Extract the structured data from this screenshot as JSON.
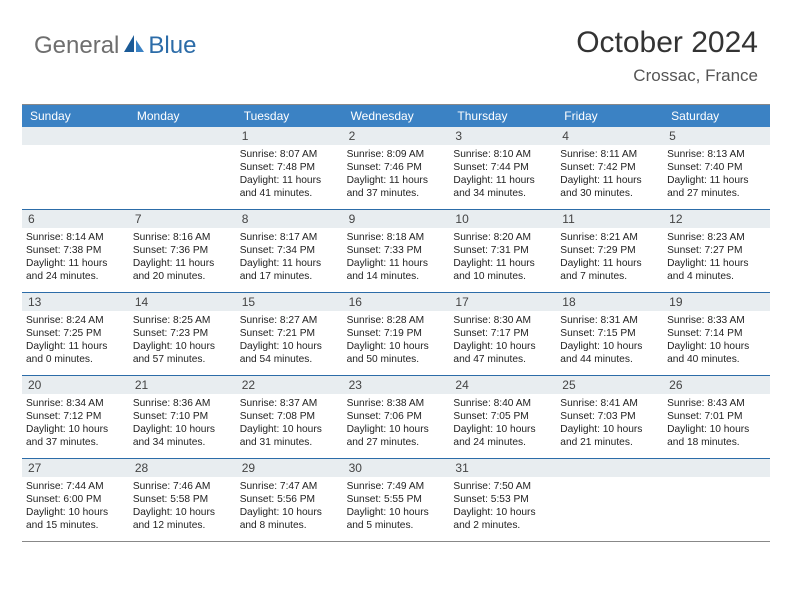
{
  "logo": {
    "part1": "General",
    "part2": "Blue"
  },
  "title": "October 2024",
  "location": "Crossac, France",
  "daynames": [
    "Sunday",
    "Monday",
    "Tuesday",
    "Wednesday",
    "Thursday",
    "Friday",
    "Saturday"
  ],
  "colors": {
    "header_bg": "#3b82c4",
    "border": "#2c6ca8",
    "daynum_bg": "#e8edf0",
    "logo_gray": "#6e6e6e",
    "logo_blue": "#2c6ca8"
  },
  "weeks": [
    [
      {
        "blank": true
      },
      {
        "blank": true
      },
      {
        "num": "1",
        "sunrise": "Sunrise: 8:07 AM",
        "sunset": "Sunset: 7:48 PM",
        "day1": "Daylight: 11 hours",
        "day2": "and 41 minutes."
      },
      {
        "num": "2",
        "sunrise": "Sunrise: 8:09 AM",
        "sunset": "Sunset: 7:46 PM",
        "day1": "Daylight: 11 hours",
        "day2": "and 37 minutes."
      },
      {
        "num": "3",
        "sunrise": "Sunrise: 8:10 AM",
        "sunset": "Sunset: 7:44 PM",
        "day1": "Daylight: 11 hours",
        "day2": "and 34 minutes."
      },
      {
        "num": "4",
        "sunrise": "Sunrise: 8:11 AM",
        "sunset": "Sunset: 7:42 PM",
        "day1": "Daylight: 11 hours",
        "day2": "and 30 minutes."
      },
      {
        "num": "5",
        "sunrise": "Sunrise: 8:13 AM",
        "sunset": "Sunset: 7:40 PM",
        "day1": "Daylight: 11 hours",
        "day2": "and 27 minutes."
      }
    ],
    [
      {
        "num": "6",
        "sunrise": "Sunrise: 8:14 AM",
        "sunset": "Sunset: 7:38 PM",
        "day1": "Daylight: 11 hours",
        "day2": "and 24 minutes."
      },
      {
        "num": "7",
        "sunrise": "Sunrise: 8:16 AM",
        "sunset": "Sunset: 7:36 PM",
        "day1": "Daylight: 11 hours",
        "day2": "and 20 minutes."
      },
      {
        "num": "8",
        "sunrise": "Sunrise: 8:17 AM",
        "sunset": "Sunset: 7:34 PM",
        "day1": "Daylight: 11 hours",
        "day2": "and 17 minutes."
      },
      {
        "num": "9",
        "sunrise": "Sunrise: 8:18 AM",
        "sunset": "Sunset: 7:33 PM",
        "day1": "Daylight: 11 hours",
        "day2": "and 14 minutes."
      },
      {
        "num": "10",
        "sunrise": "Sunrise: 8:20 AM",
        "sunset": "Sunset: 7:31 PM",
        "day1": "Daylight: 11 hours",
        "day2": "and 10 minutes."
      },
      {
        "num": "11",
        "sunrise": "Sunrise: 8:21 AM",
        "sunset": "Sunset: 7:29 PM",
        "day1": "Daylight: 11 hours",
        "day2": "and 7 minutes."
      },
      {
        "num": "12",
        "sunrise": "Sunrise: 8:23 AM",
        "sunset": "Sunset: 7:27 PM",
        "day1": "Daylight: 11 hours",
        "day2": "and 4 minutes."
      }
    ],
    [
      {
        "num": "13",
        "sunrise": "Sunrise: 8:24 AM",
        "sunset": "Sunset: 7:25 PM",
        "day1": "Daylight: 11 hours",
        "day2": "and 0 minutes."
      },
      {
        "num": "14",
        "sunrise": "Sunrise: 8:25 AM",
        "sunset": "Sunset: 7:23 PM",
        "day1": "Daylight: 10 hours",
        "day2": "and 57 minutes."
      },
      {
        "num": "15",
        "sunrise": "Sunrise: 8:27 AM",
        "sunset": "Sunset: 7:21 PM",
        "day1": "Daylight: 10 hours",
        "day2": "and 54 minutes."
      },
      {
        "num": "16",
        "sunrise": "Sunrise: 8:28 AM",
        "sunset": "Sunset: 7:19 PM",
        "day1": "Daylight: 10 hours",
        "day2": "and 50 minutes."
      },
      {
        "num": "17",
        "sunrise": "Sunrise: 8:30 AM",
        "sunset": "Sunset: 7:17 PM",
        "day1": "Daylight: 10 hours",
        "day2": "and 47 minutes."
      },
      {
        "num": "18",
        "sunrise": "Sunrise: 8:31 AM",
        "sunset": "Sunset: 7:15 PM",
        "day1": "Daylight: 10 hours",
        "day2": "and 44 minutes."
      },
      {
        "num": "19",
        "sunrise": "Sunrise: 8:33 AM",
        "sunset": "Sunset: 7:14 PM",
        "day1": "Daylight: 10 hours",
        "day2": "and 40 minutes."
      }
    ],
    [
      {
        "num": "20",
        "sunrise": "Sunrise: 8:34 AM",
        "sunset": "Sunset: 7:12 PM",
        "day1": "Daylight: 10 hours",
        "day2": "and 37 minutes."
      },
      {
        "num": "21",
        "sunrise": "Sunrise: 8:36 AM",
        "sunset": "Sunset: 7:10 PM",
        "day1": "Daylight: 10 hours",
        "day2": "and 34 minutes."
      },
      {
        "num": "22",
        "sunrise": "Sunrise: 8:37 AM",
        "sunset": "Sunset: 7:08 PM",
        "day1": "Daylight: 10 hours",
        "day2": "and 31 minutes."
      },
      {
        "num": "23",
        "sunrise": "Sunrise: 8:38 AM",
        "sunset": "Sunset: 7:06 PM",
        "day1": "Daylight: 10 hours",
        "day2": "and 27 minutes."
      },
      {
        "num": "24",
        "sunrise": "Sunrise: 8:40 AM",
        "sunset": "Sunset: 7:05 PM",
        "day1": "Daylight: 10 hours",
        "day2": "and 24 minutes."
      },
      {
        "num": "25",
        "sunrise": "Sunrise: 8:41 AM",
        "sunset": "Sunset: 7:03 PM",
        "day1": "Daylight: 10 hours",
        "day2": "and 21 minutes."
      },
      {
        "num": "26",
        "sunrise": "Sunrise: 8:43 AM",
        "sunset": "Sunset: 7:01 PM",
        "day1": "Daylight: 10 hours",
        "day2": "and 18 minutes."
      }
    ],
    [
      {
        "num": "27",
        "sunrise": "Sunrise: 7:44 AM",
        "sunset": "Sunset: 6:00 PM",
        "day1": "Daylight: 10 hours",
        "day2": "and 15 minutes."
      },
      {
        "num": "28",
        "sunrise": "Sunrise: 7:46 AM",
        "sunset": "Sunset: 5:58 PM",
        "day1": "Daylight: 10 hours",
        "day2": "and 12 minutes."
      },
      {
        "num": "29",
        "sunrise": "Sunrise: 7:47 AM",
        "sunset": "Sunset: 5:56 PM",
        "day1": "Daylight: 10 hours",
        "day2": "and 8 minutes."
      },
      {
        "num": "30",
        "sunrise": "Sunrise: 7:49 AM",
        "sunset": "Sunset: 5:55 PM",
        "day1": "Daylight: 10 hours",
        "day2": "and 5 minutes."
      },
      {
        "num": "31",
        "sunrise": "Sunrise: 7:50 AM",
        "sunset": "Sunset: 5:53 PM",
        "day1": "Daylight: 10 hours",
        "day2": "and 2 minutes."
      },
      {
        "blank": true
      },
      {
        "blank": true
      }
    ]
  ]
}
